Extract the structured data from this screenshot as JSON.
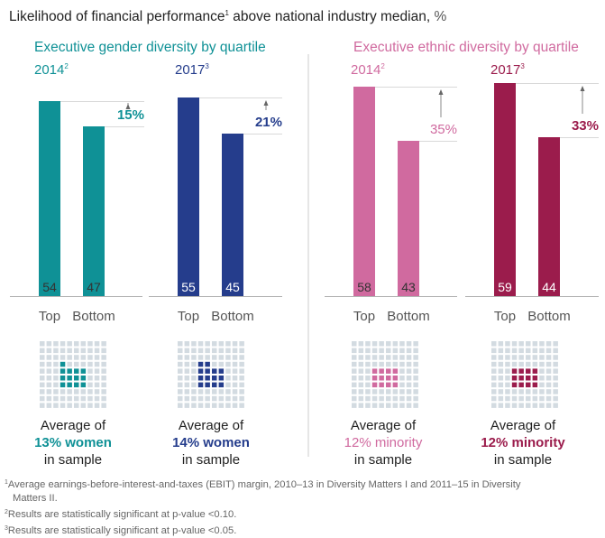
{
  "title": {
    "text": "Likelihood of financial performance",
    "sup": "1",
    "rest": " above national industry median, ",
    "unit": "%"
  },
  "groups": [
    {
      "title": "Executive gender diversity by quartile",
      "color": "#0f9196"
    },
    {
      "title": "Executive ethnic diversity by quartile",
      "color": "#d06a9f"
    }
  ],
  "chart_data": {
    "type": "bar",
    "title": "Likelihood of financial performance above national industry median, %",
    "categories": [
      "Top",
      "Bottom"
    ],
    "ylim": [
      0,
      60
    ],
    "grid": false,
    "panels": [
      {
        "group": "Executive gender diversity by quartile",
        "year": "2014",
        "year_sup": "2",
        "color": "#0f9196",
        "label_color": "#333333",
        "values": [
          54,
          47
        ],
        "diff_label": "15%",
        "sample_pct": 13,
        "sample_label_pre": "Average of",
        "sample_label_hl": "13% women",
        "sample_label_post": "in sample"
      },
      {
        "group": "Executive gender diversity by quartile",
        "year": "2017",
        "year_sup": "3",
        "color": "#253d8c",
        "label_color": "#ffffff",
        "values": [
          55,
          45
        ],
        "diff_label": "21%",
        "sample_pct": 14,
        "sample_label_pre": "Average of",
        "sample_label_hl": "14% women",
        "sample_label_post": "in sample"
      },
      {
        "group": "Executive ethnic diversity by quartile",
        "year": "2014",
        "year_sup": "2",
        "color": "#d06a9f",
        "label_color": "#333333",
        "values": [
          58,
          43
        ],
        "diff_label": "35%",
        "sample_pct": 12,
        "sample_label_pre": "Average of",
        "sample_label_hl": "12% minority",
        "sample_label_post": "in sample"
      },
      {
        "group": "Executive ethnic diversity by quartile",
        "year": "2017",
        "year_sup": "3",
        "color": "#9b1c4c",
        "label_color": "#ffffff",
        "values": [
          59,
          44
        ],
        "diff_label": "33%",
        "sample_pct": 12,
        "sample_label_pre": "Average of",
        "sample_label_hl": "12% minority",
        "sample_label_post": "in sample"
      }
    ]
  },
  "waffle": {
    "empty_color": "#d3dbe1",
    "cells": 100
  },
  "footnotes": [
    {
      "sup": "1",
      "text": "Average earnings-before-interest-and-taxes (EBIT) margin, 2010–13 in Diversity Matters I and 2011–15 in Diversity",
      "cont": "Matters II."
    },
    {
      "sup": "2",
      "text": "Results are statistically significant at p-value <0.10."
    },
    {
      "sup": "3",
      "text": "Results are statistically significant at p-value <0.05."
    }
  ]
}
